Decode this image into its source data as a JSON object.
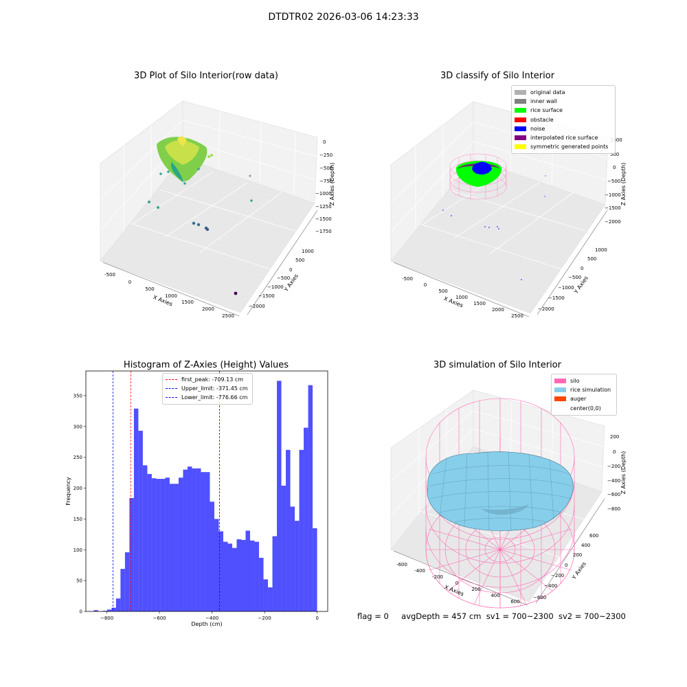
{
  "suptitle": "DTDTR02 2026-03-06 14:23:33",
  "panels": {
    "raw": {
      "title": "3D Plot of Silo Interior(row data)",
      "xlabel": "X Axies",
      "ylabel": "Y Axies",
      "zlabel": "Z Axies (Depth)",
      "xticks": [
        "-500",
        "0",
        "500",
        "1000",
        "1500",
        "2000",
        "2500"
      ],
      "yticks": [
        "1000",
        "500",
        "0",
        "−500",
        "−1000",
        "−1500",
        "−2000"
      ],
      "zticks": [
        "0",
        "−250",
        "−500",
        "−750",
        "−1000",
        "−1250",
        "−1500",
        "−1750"
      ]
    },
    "classify": {
      "title": "3D classify of Silo Interior",
      "xlabel": "X Axies",
      "ylabel": "Y Axies",
      "zlabel": "Z Axies (Depth)",
      "xticks": [
        "-500",
        "0",
        "500",
        "1000",
        "1500",
        "2000",
        "2500"
      ],
      "yticks": [
        "1000",
        "500",
        "0",
        "−500",
        "−1000",
        "−1500",
        "−2000"
      ],
      "zticks": [
        "1000",
        "500",
        "0",
        "−500",
        "−1000",
        "−1500",
        "−2000"
      ],
      "legend": [
        {
          "label": "original data",
          "color": "#b0b0b0"
        },
        {
          "label": "inner wall",
          "color": "#808080"
        },
        {
          "label": "rice surface",
          "color": "#00ff00"
        },
        {
          "label": "obstacle",
          "color": "#ff0000"
        },
        {
          "label": "noise",
          "color": "#0000ff"
        },
        {
          "label": "interpolated rice surface",
          "color": "#800080"
        },
        {
          "label": "symmetric generated points",
          "color": "#ffff00"
        }
      ]
    },
    "simulation": {
      "title": "3D simulation of Silo Interior",
      "xlabel": "X Axies",
      "ylabel": "Y Axies",
      "zlabel": "Z Axies (Depth)",
      "xticks": [
        "-600",
        "-400",
        "-200",
        "0",
        "200",
        "400",
        "600"
      ],
      "yticks": [
        "600",
        "400",
        "200",
        "0",
        "−200",
        "−400",
        "−600"
      ],
      "zticks": [
        "200",
        "0",
        "−200",
        "−400",
        "−600",
        "−800"
      ],
      "legend": [
        {
          "label": "silo",
          "color": "#ff69b4"
        },
        {
          "label": "rice simulation",
          "color": "#87ceeb"
        },
        {
          "label": "auger",
          "color": "#ff4500"
        },
        {
          "label": "center(0,0)",
          "color": "#ffffff"
        }
      ]
    }
  },
  "chart_data": {
    "type": "bar",
    "title": "Histogram of Z-Axies (Height) Values",
    "xlabel": "Depth (cm)",
    "ylabel": "Frequency",
    "xlim": [
      -880,
      40
    ],
    "ylim": [
      0,
      390
    ],
    "xticks": [
      -800,
      -600,
      -400,
      -200,
      0
    ],
    "yticks": [
      0,
      50,
      100,
      150,
      200,
      250,
      300,
      350
    ],
    "bar_color": "#5050ff",
    "bin_start": -850.3,
    "bin_width": 17.0,
    "counts": [
      2,
      0,
      1,
      3,
      6,
      21,
      69,
      96,
      184,
      329,
      293,
      237,
      223,
      216,
      215,
      215,
      217,
      207,
      207,
      217,
      230,
      235,
      232,
      232,
      226,
      226,
      178,
      150,
      130,
      113,
      110,
      103,
      117,
      116,
      131,
      115,
      113,
      87,
      52,
      39,
      122,
      374,
      204,
      262,
      170,
      147,
      262,
      298,
      367,
      135
    ],
    "vlines": [
      {
        "label": "first_peak: -709.13 cm",
        "x": -709.13,
        "color": "#ff0000"
      },
      {
        "label": "Upper_limit: -371.45 cm",
        "x": -371.45,
        "color": "#0000ff"
      },
      {
        "label": "Lower_limit: -776.66 cm",
        "x": -776.66,
        "color": "#0000ff"
      }
    ]
  },
  "status": {
    "flag": "flag = 0",
    "avg": "avgDepth = 457 cm",
    "sv1": "sv1 = 700~2300",
    "sv2": "sv2 = 700~2300"
  }
}
